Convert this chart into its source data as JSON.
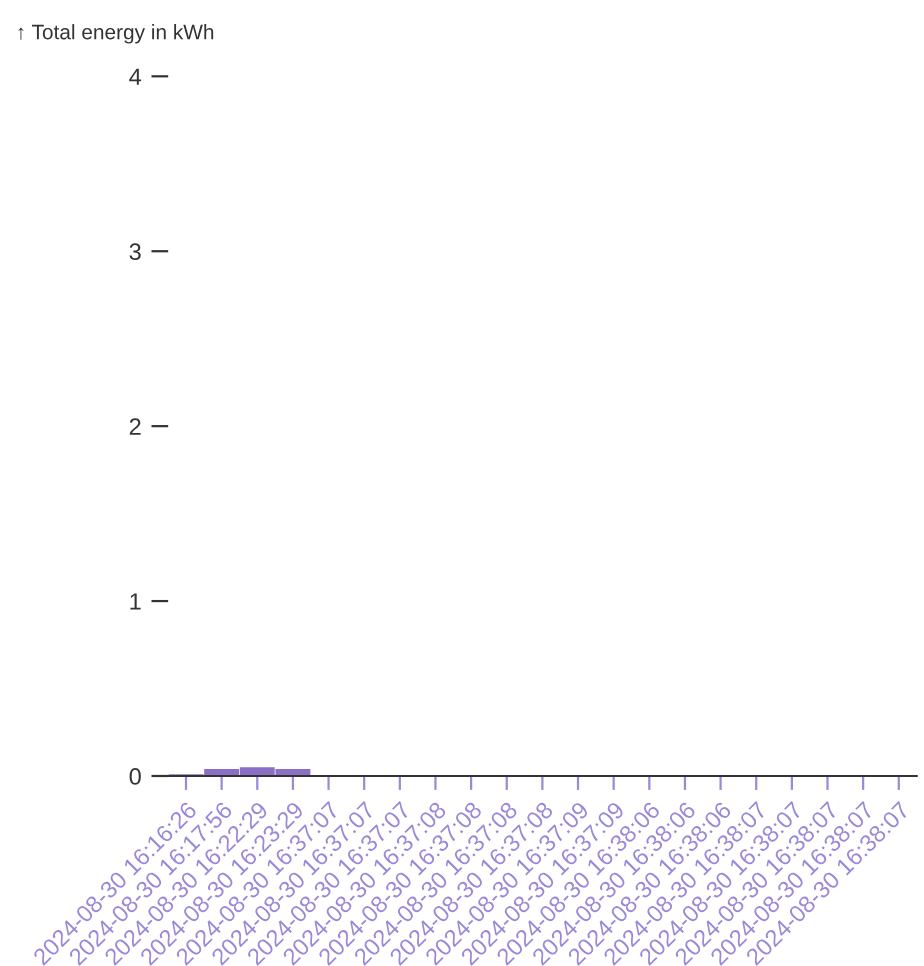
{
  "chart_data": {
    "type": "bar",
    "ylabel": "↑ Total energy in kWh",
    "categories": [
      "2024-08-30 16:16:26",
      "2024-08-30 16:17:56",
      "2024-08-30 16:22:29",
      "2024-08-30 16:23:29",
      "2024-08-30 16:37:07",
      "2024-08-30 16:37:07",
      "2024-08-30 16:37:07",
      "2024-08-30 16:37:08",
      "2024-08-30 16:37:08",
      "2024-08-30 16:37:08",
      "2024-08-30 16:37:08",
      "2024-08-30 16:37:09",
      "2024-08-30 16:37:09",
      "2024-08-30 16:38:06",
      "2024-08-30 16:38:06",
      "2024-08-30 16:38:06",
      "2024-08-30 16:38:07",
      "2024-08-30 16:38:07",
      "2024-08-30 16:38:07",
      "2024-08-30 16:38:07",
      "2024-08-30 16:38:07"
    ],
    "values": [
      0.01,
      0.04,
      0.05,
      0.04,
      0,
      0,
      0,
      0,
      0,
      0,
      0,
      0,
      0,
      0,
      0,
      0,
      0,
      0,
      0,
      0,
      0
    ],
    "color": "#8a6fc4",
    "ylim": [
      0,
      4
    ],
    "yticks": [
      0,
      1,
      2,
      3,
      4
    ],
    "grid": false,
    "legend": false
  }
}
